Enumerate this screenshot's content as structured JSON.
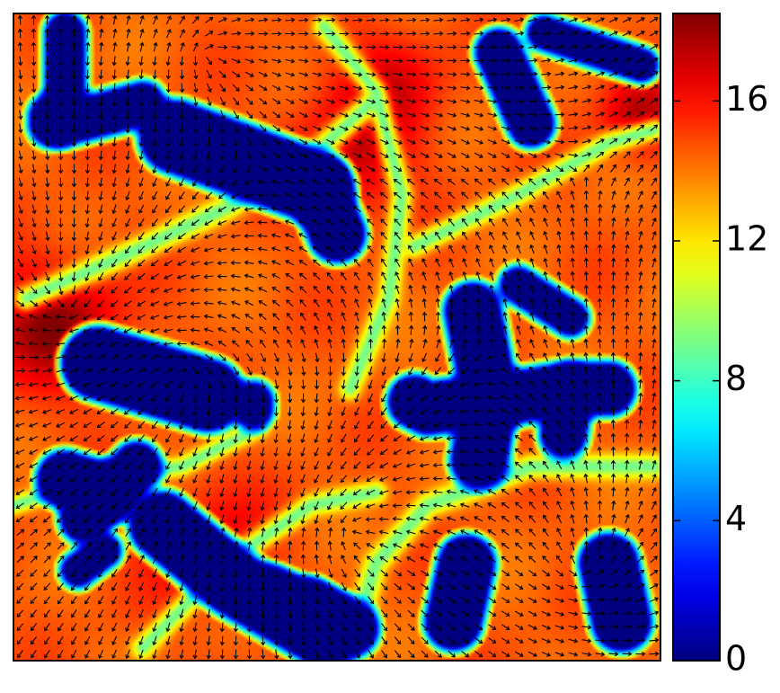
{
  "chart_data": {
    "type": "heatmap",
    "title": "",
    "xlabel": "",
    "ylabel": "",
    "colormap": "jet",
    "overlay": "quiver",
    "colorbar": {
      "position": "right",
      "range": [
        0,
        18.5
      ],
      "ticks": [
        0,
        4,
        8,
        12,
        16
      ],
      "tick_labels": [
        "0",
        "4",
        "8",
        "12",
        "16"
      ]
    },
    "field": {
      "domain_x": [
        0,
        1
      ],
      "domain_y": [
        0,
        1
      ],
      "baseline": 14.5,
      "band_value": 9,
      "bands": [
        {
          "points": [
            [
              0.02,
              0.44
            ],
            [
              0.18,
              0.37
            ],
            [
              0.33,
              0.3
            ],
            [
              0.45,
              0.23
            ],
            [
              0.55,
              0.14
            ]
          ],
          "width": 0.018
        },
        {
          "points": [
            [
              0.48,
              0.02
            ],
            [
              0.56,
              0.12
            ],
            [
              0.6,
              0.28
            ],
            [
              0.58,
              0.44
            ],
            [
              0.52,
              0.58
            ]
          ],
          "width": 0.016
        },
        {
          "points": [
            [
              0.2,
              0.98
            ],
            [
              0.34,
              0.84
            ],
            [
              0.46,
              0.76
            ],
            [
              0.56,
              0.74
            ]
          ],
          "width": 0.016
        },
        {
          "points": [
            [
              0.62,
              0.36
            ],
            [
              0.78,
              0.28
            ],
            [
              0.92,
              0.2
            ],
            [
              0.99,
              0.18
            ]
          ],
          "width": 0.016
        },
        {
          "points": [
            [
              0.0,
              0.76
            ],
            [
              0.12,
              0.72
            ],
            [
              0.26,
              0.7
            ],
            [
              0.38,
              0.64
            ]
          ],
          "width": 0.014
        },
        {
          "points": [
            [
              0.52,
              0.98
            ],
            [
              0.56,
              0.85
            ],
            [
              0.64,
              0.76
            ],
            [
              0.8,
              0.7
            ],
            [
              0.99,
              0.7
            ]
          ],
          "width": 0.018
        }
      ],
      "hotspots": [
        {
          "x": 0.06,
          "y": 0.48,
          "r": 0.1,
          "amp": 3.5
        },
        {
          "x": 0.52,
          "y": 0.22,
          "r": 0.1,
          "amp": 2.5
        },
        {
          "x": 0.97,
          "y": 0.16,
          "r": 0.06,
          "amp": 3.0
        },
        {
          "x": 0.58,
          "y": 0.1,
          "r": 0.08,
          "amp": 2.0
        },
        {
          "x": 0.3,
          "y": 0.82,
          "r": 0.1,
          "amp": 1.8
        }
      ],
      "blobs": [
        {
          "points": [
            [
              0.23,
              0.79
            ],
            [
              0.34,
              0.88
            ],
            [
              0.48,
              0.96
            ]
          ],
          "width": 0.045
        },
        {
          "points": [
            [
              0.4,
              0.9
            ],
            [
              0.52,
              0.95
            ]
          ],
          "width": 0.038
        },
        {
          "points": [
            [
              0.08,
              0.72
            ],
            [
              0.15,
              0.74
            ]
          ],
          "width": 0.038
        },
        {
          "points": [
            [
              0.11,
              0.78
            ],
            [
              0.19,
              0.7
            ]
          ],
          "width": 0.032
        },
        {
          "points": [
            [
              0.68,
              0.94
            ],
            [
              0.7,
              0.85
            ]
          ],
          "width": 0.038
        },
        {
          "points": [
            [
              0.94,
              0.94
            ],
            [
              0.92,
              0.85
            ]
          ],
          "width": 0.04
        },
        {
          "points": [
            [
              0.13,
              0.54
            ],
            [
              0.3,
              0.59
            ]
          ],
          "width": 0.05
        },
        {
          "points": [
            [
              0.37,
              0.6
            ],
            [
              0.37,
              0.61
            ]
          ],
          "width": 0.025
        },
        {
          "points": [
            [
              0.72,
              0.69
            ],
            [
              0.73,
              0.63
            ],
            [
              0.73,
              0.56
            ],
            [
              0.71,
              0.46
            ]
          ],
          "width": 0.038
        },
        {
          "points": [
            [
              0.73,
              0.6
            ],
            [
              0.64,
              0.61
            ],
            [
              0.62,
              0.6
            ]
          ],
          "width": 0.035
        },
        {
          "points": [
            [
              0.73,
              0.6
            ],
            [
              0.86,
              0.58
            ],
            [
              0.92,
              0.58
            ]
          ],
          "width": 0.035
        },
        {
          "points": [
            [
              0.86,
              0.58
            ],
            [
              0.85,
              0.65
            ]
          ],
          "width": 0.03
        },
        {
          "points": [
            [
              0.25,
              0.19
            ],
            [
              0.47,
              0.27
            ]
          ],
          "width": 0.05
        },
        {
          "points": [
            [
              0.47,
              0.27
            ],
            [
              0.5,
              0.34
            ]
          ],
          "width": 0.038
        },
        {
          "points": [
            [
              0.08,
              0.17
            ],
            [
              0.2,
              0.14
            ]
          ],
          "width": 0.028
        },
        {
          "points": [
            [
              0.08,
              0.13
            ],
            [
              0.08,
              0.03
            ]
          ],
          "width": 0.025
        },
        {
          "points": [
            [
              0.75,
              0.06
            ],
            [
              0.8,
              0.17
            ]
          ],
          "width": 0.03
        },
        {
          "points": [
            [
              0.46,
              0.91
            ],
            [
              0.49,
              0.93
            ]
          ],
          "width": 0.03
        },
        {
          "points": [
            [
              0.06,
              0.16
            ],
            [
              0.06,
              0.17
            ]
          ],
          "width": 0.03
        },
        {
          "points": [
            [
              0.82,
              0.03
            ],
            [
              0.97,
              0.08
            ]
          ],
          "width": 0.02
        },
        {
          "points": [
            [
              0.78,
              0.42
            ],
            [
              0.86,
              0.47
            ]
          ],
          "width": 0.022
        },
        {
          "points": [
            [
              0.1,
              0.86
            ],
            [
              0.14,
              0.83
            ]
          ],
          "width": 0.02
        }
      ],
      "vortices": [
        {
          "x": 0.27,
          "y": 0.56,
          "s": 1
        },
        {
          "x": 0.74,
          "y": 0.53,
          "s": -1
        },
        {
          "x": 0.37,
          "y": 0.24,
          "s": -1
        },
        {
          "x": 0.08,
          "y": 0.45,
          "s": 1
        },
        {
          "x": 0.52,
          "y": 0.8,
          "s": 1
        },
        {
          "x": 0.88,
          "y": 0.24,
          "s": -1
        },
        {
          "x": 0.3,
          "y": 0.06,
          "s": 1
        },
        {
          "x": 0.88,
          "y": 0.86,
          "s": 1
        }
      ]
    }
  }
}
